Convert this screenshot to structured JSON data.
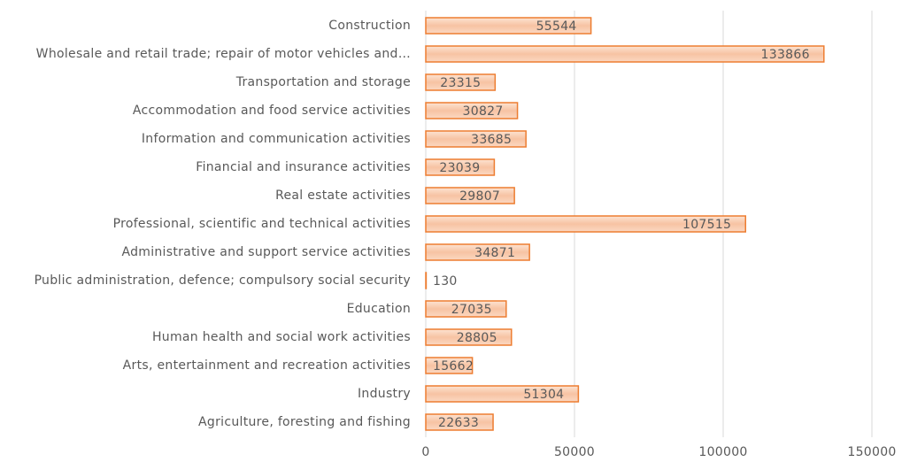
{
  "chart_data": {
    "type": "bar",
    "orientation": "horizontal",
    "categories": [
      "Construction",
      "Wholesale and retail trade; repair of motor vehicles and…",
      "Transportation and storage",
      "Accommodation and food service activities",
      "Information and communication activities",
      "Financial and insurance activities",
      "Real estate activities",
      "Professional, scientific and technical activities",
      "Administrative and support service activities",
      "Public administration, defence; compulsory social security",
      "Education",
      "Human health and social work activities",
      "Arts, entertainment and recreation activities",
      "Industry",
      "Agriculture, foresting and fishing"
    ],
    "values": [
      55544,
      133866,
      23315,
      30827,
      33685,
      23039,
      29807,
      107515,
      34871,
      130,
      27035,
      28805,
      15662,
      51304,
      22633
    ],
    "color": "#ed7d31",
    "xlim": [
      0,
      150000
    ],
    "xticks": [
      0,
      50000,
      100000,
      150000
    ],
    "grid": true
  }
}
